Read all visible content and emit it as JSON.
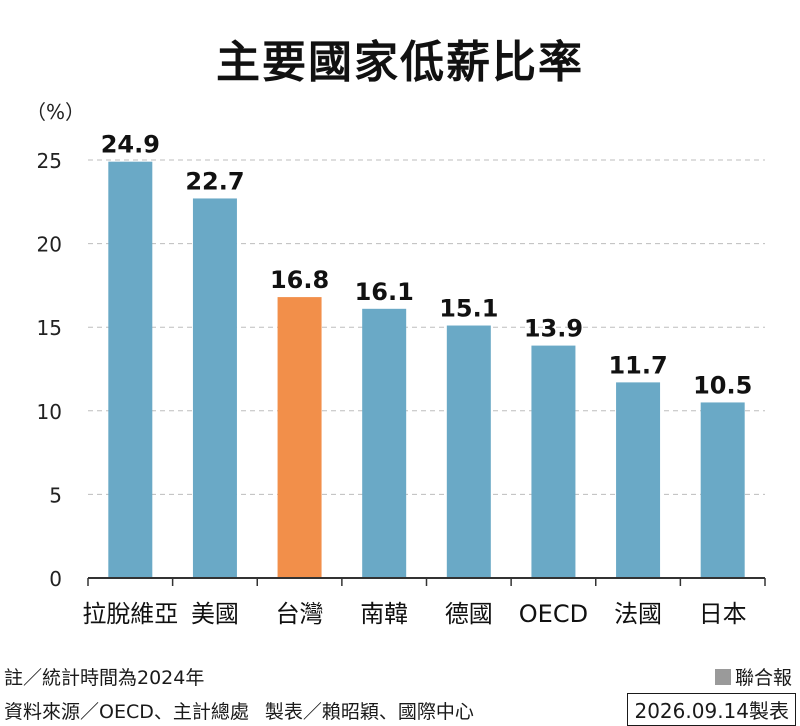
{
  "title": "主要國家低薪比率",
  "unit_label": "（%）",
  "chart_data": {
    "type": "bar",
    "title": "主要國家低薪比率",
    "ylabel": "（%）",
    "categories": [
      "拉脫維亞",
      "美國",
      "台灣",
      "南韓",
      "德國",
      "OECD",
      "法國",
      "日本"
    ],
    "values": [
      24.9,
      22.7,
      16.8,
      16.1,
      15.1,
      13.9,
      11.7,
      10.5
    ],
    "value_labels": [
      "24.9",
      "22.7",
      "16.8",
      "16.1",
      "15.1",
      "13.9",
      "11.7",
      "10.5"
    ],
    "highlight_index": 2,
    "ylim": [
      0,
      25
    ],
    "yticks": [
      0,
      5,
      10,
      15,
      20,
      25
    ],
    "ytick_labels": [
      "0",
      "5",
      "10",
      "15",
      "20",
      "25"
    ],
    "grid": true,
    "colors": {
      "bar": "#6aa9c6",
      "highlight": "#f28f4a",
      "grid": "#bdbdbd",
      "axis": "#333333"
    }
  },
  "footer": {
    "note": "註／統計時間為2024年",
    "brand": "聯合報",
    "source": "資料來源／OECD、主計總處",
    "maker": "製表／賴昭穎、國際中心",
    "date_stamp": "2026.09.14製表"
  }
}
